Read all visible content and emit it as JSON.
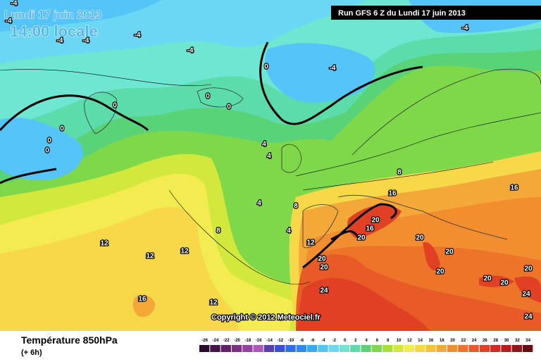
{
  "header": {
    "date": "Lundi 17 juin 2013",
    "time": "14:00 locale",
    "run": "Run GFS 6 Z du Lundi 17 juin 2013"
  },
  "copyright": "Copyright © 2012 Meteociel.fr",
  "legend": {
    "title": "Température 850hPa",
    "subtitle": "(+ 6h)",
    "values": [
      -26,
      -24,
      -22,
      -20,
      -18,
      -16,
      -14,
      -12,
      -10,
      -8,
      -6,
      -4,
      -2,
      0,
      2,
      4,
      6,
      8,
      10,
      12,
      14,
      16,
      18,
      20,
      22,
      24,
      26,
      28,
      30,
      32,
      34
    ],
    "colors": [
      "#2a0a2e",
      "#46134c",
      "#62206a",
      "#7d2f86",
      "#9640a0",
      "#ad58b8",
      "#5a3cb4",
      "#3c50d2",
      "#2e6ee6",
      "#2a8cf0",
      "#3aa8f4",
      "#55c4f8",
      "#6ad8f4",
      "#6ee6d2",
      "#5cdcaa",
      "#5ad278",
      "#7ed84a",
      "#a8e03a",
      "#d2e83c",
      "#f2ec50",
      "#f6d848",
      "#f6c040",
      "#f4a838",
      "#f28e30",
      "#ee742a",
      "#e85a26",
      "#e04024",
      "#d02c24",
      "#b41e22",
      "#901418",
      "#6a0c10"
    ]
  },
  "contour_labels": [
    "-4",
    "-4",
    "-4",
    "-4",
    "-4",
    "-4",
    "-4",
    "-4",
    "0",
    "0",
    "0",
    "0",
    "0",
    "0",
    "0",
    "4",
    "4",
    "4",
    "4",
    "8",
    "8",
    "8",
    "16",
    "16",
    "12",
    "12",
    "12",
    "12",
    "12",
    "16",
    "20",
    "20",
    "16",
    "20",
    "20",
    "20",
    "20",
    "20",
    "20",
    "20",
    "24",
    "24",
    "24",
    "20"
  ]
}
